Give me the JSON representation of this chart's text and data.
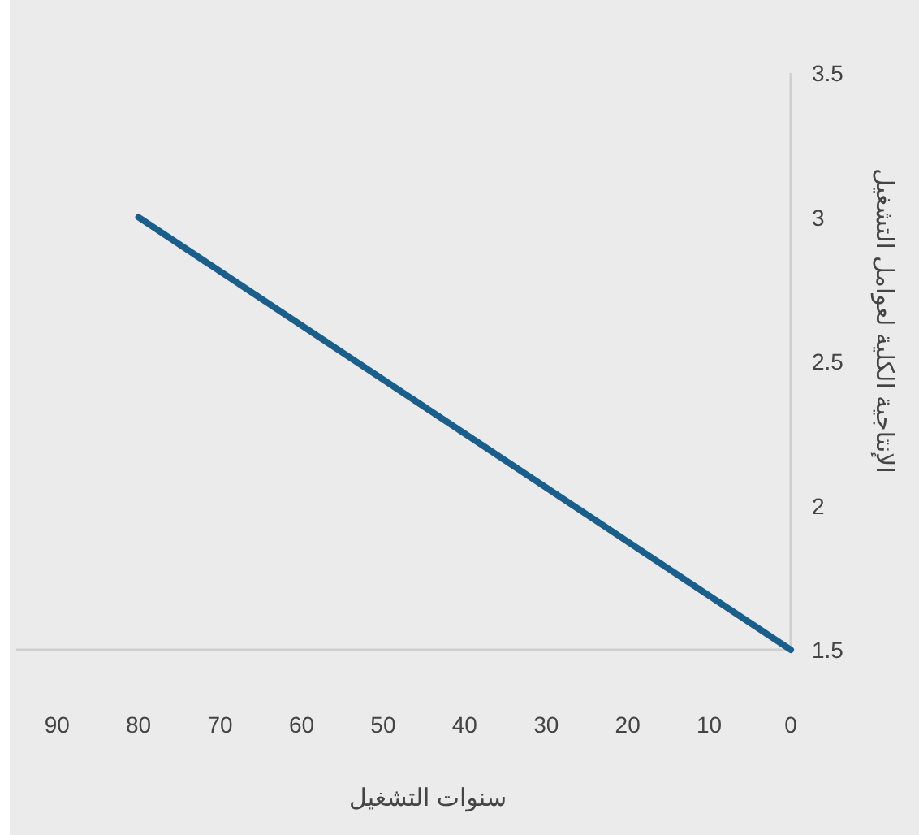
{
  "chart_data": {
    "type": "line",
    "xlabel": "سنوات التشغيل",
    "ylabel": "الإنتاجية الكلية لعوامل التشغيل",
    "x": [
      80,
      0
    ],
    "series": [
      {
        "color": "#1a5e8c",
        "values": [
          3,
          1.5
        ]
      }
    ],
    "xlim": [
      95,
      0
    ],
    "ylim": [
      1.5,
      3.5
    ],
    "xticks": [
      90,
      80,
      70,
      60,
      50,
      40,
      30,
      20,
      10,
      0
    ],
    "yticks": [
      1.5,
      2,
      2.5,
      3,
      3.5
    ],
    "grid": false,
    "marker": "none",
    "line_style": "solid"
  }
}
